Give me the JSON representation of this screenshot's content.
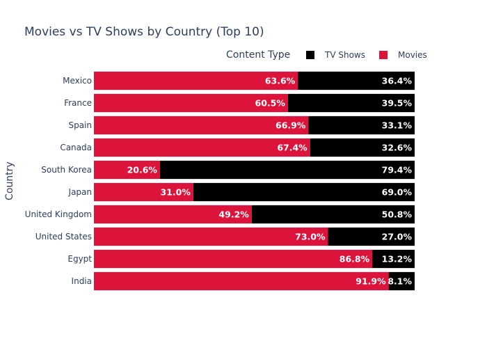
{
  "chart_data": {
    "type": "bar",
    "orientation": "horizontal",
    "stacked": true,
    "title": "Movies vs TV Shows by Country (Top 10)",
    "xlabel": "",
    "ylabel": "Country",
    "xlim": [
      0,
      100
    ],
    "grid": false,
    "categories": [
      "Mexico",
      "France",
      "Spain",
      "Canada",
      "South Korea",
      "Japan",
      "United Kingdom",
      "United States",
      "Egypt",
      "India"
    ],
    "series": [
      {
        "name": "Movies",
        "color": "#DC143C",
        "values": [
          63.6,
          60.5,
          66.9,
          67.4,
          20.6,
          31.0,
          49.2,
          73.0,
          86.8,
          91.9
        ],
        "labels": [
          "63.6%",
          "60.5%",
          "66.9%",
          "67.4%",
          "20.6%",
          "31.0%",
          "49.2%",
          "73.0%",
          "86.8%",
          "91.9%"
        ]
      },
      {
        "name": "TV Shows",
        "color": "#000000",
        "values": [
          36.4,
          39.5,
          33.1,
          32.6,
          79.4,
          69.0,
          50.8,
          27.0,
          13.2,
          8.1
        ],
        "labels": [
          "36.4%",
          "39.5%",
          "33.1%",
          "32.6%",
          "79.4%",
          "69.0%",
          "50.8%",
          "27.0%",
          "13.2%",
          "8.1%"
        ]
      }
    ],
    "legend": {
      "title": "Content Type",
      "placement": "top-right",
      "order": [
        "TV Shows",
        "Movies"
      ]
    }
  }
}
